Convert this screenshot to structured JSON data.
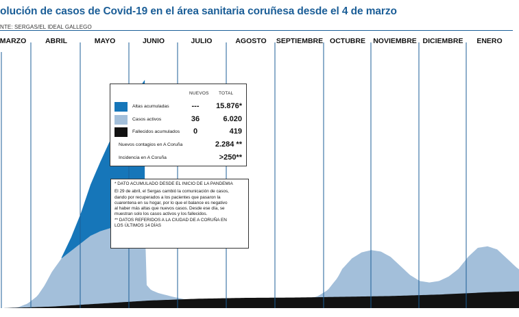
{
  "title": "olución de casos de Covid-19 en el área sanitaria coruñesa desde el 4 de marzo",
  "source": "NTE: SERGAS/EL IDEAL GALLEGO",
  "colors": {
    "altas": "#1676b9",
    "activos": "#a3bfda",
    "fallecidos": "#121212",
    "title": "#1b5e97",
    "gridline": "#1b5e97"
  },
  "legend": {
    "col_nuevos": "NUEVOS",
    "col_total": "TOTAL",
    "rows": [
      {
        "label": "Altas acumuladas",
        "swatch": "#1676b9",
        "nuevos": "---",
        "total": "15.876*"
      },
      {
        "label": "Casos activos",
        "swatch": "#a3bfda",
        "nuevos": "36",
        "total": "6.020"
      },
      {
        "label": "Fallecidos acumulados",
        "swatch": "#121212",
        "nuevos": "0",
        "total": "419"
      },
      {
        "label": "Nuevos contagios en A Coruña",
        "swatch": "",
        "nuevos": "",
        "total": "2.284 **"
      },
      {
        "label": "Incidencia en A Coruña",
        "swatch": "",
        "nuevos": "",
        "total": ">250**"
      }
    ]
  },
  "notes": [
    "* DATO ACUMULADO DESDE EL INICIO DE LA PANDEMIA",
    "",
    "El 29 de abril, el Sergas cambió la comunicación de casos,",
    "dando por recuperados a los pacientes que pasaron la",
    "cuarentena en su hogar, por lo que el balance es negativo",
    "al haber más altas que nuevos casos. Desde ese día, se",
    "muestran solo los casos activos y los fallecidos.",
    "** DATOS REFERIDOS A LA CIUDAD DE A CORUÑA EN",
    "LOS ÚLTIMOS 14 DÍAS"
  ],
  "chart_data": {
    "type": "area",
    "x_unit": "month",
    "categories": [
      "MARZO",
      "ABRIL",
      "MAYO",
      "JUNIO",
      "JULIO",
      "AGOSTO",
      "SEPTIEMBRE",
      "OCTUBRE",
      "NOVIEMBRE",
      "DICIEMBRE",
      "ENERO"
    ],
    "series": [
      {
        "name": "Altas acumuladas",
        "color": "#1676b9",
        "points": [
          [
            1.2,
            0.05
          ],
          [
            1.4,
            0.9
          ],
          [
            1.6,
            2.0
          ],
          [
            1.8,
            3.4
          ],
          [
            2.0,
            4.6
          ],
          [
            2.2,
            5.8
          ],
          [
            2.4,
            6.9
          ],
          [
            2.6,
            7.9
          ],
          [
            2.8,
            8.8
          ],
          [
            2.93,
            9.3
          ]
        ]
      },
      {
        "name": "Casos activos",
        "color": "#a3bfda",
        "points": [
          [
            0,
            0
          ],
          [
            0.3,
            0.05
          ],
          [
            0.5,
            0.3
          ],
          [
            0.7,
            0.8
          ],
          [
            0.85,
            1.5
          ],
          [
            1.0,
            2.4
          ],
          [
            1.2,
            3.3
          ],
          [
            1.4,
            3.8
          ],
          [
            1.6,
            4.3
          ],
          [
            1.8,
            4.8
          ],
          [
            2.0,
            5.1
          ],
          [
            2.2,
            5.3
          ],
          [
            2.4,
            5.5
          ],
          [
            2.6,
            5.7
          ],
          [
            2.8,
            5.8
          ],
          [
            2.93,
            5.9
          ],
          [
            2.94,
            1.6
          ],
          [
            3.05,
            1.2
          ],
          [
            3.2,
            1.0
          ],
          [
            3.5,
            0.75
          ],
          [
            3.8,
            0.55
          ],
          [
            4.2,
            0.5
          ],
          [
            4.6,
            0.48
          ],
          [
            5.0,
            0.45
          ],
          [
            5.5,
            0.42
          ],
          [
            6.0,
            0.5
          ],
          [
            6.3,
            0.6
          ],
          [
            6.5,
            0.8
          ],
          [
            6.7,
            1.2
          ],
          [
            6.9,
            2.0
          ],
          [
            7.0,
            2.6
          ],
          [
            7.2,
            3.3
          ],
          [
            7.4,
            3.7
          ],
          [
            7.6,
            3.85
          ],
          [
            7.8,
            3.75
          ],
          [
            8.0,
            3.4
          ],
          [
            8.2,
            2.8
          ],
          [
            8.4,
            2.2
          ],
          [
            8.6,
            1.8
          ],
          [
            8.8,
            1.7
          ],
          [
            9.0,
            1.8
          ],
          [
            9.2,
            2.1
          ],
          [
            9.4,
            2.6
          ],
          [
            9.6,
            3.4
          ],
          [
            9.8,
            4.0
          ],
          [
            10.0,
            4.1
          ],
          [
            10.2,
            3.9
          ],
          [
            10.4,
            3.3
          ],
          [
            10.6,
            2.7
          ],
          [
            10.8,
            2.2
          ],
          [
            11.0,
            1.95
          ],
          [
            11.2,
            1.8
          ],
          [
            11.4,
            1.8
          ],
          [
            11.55,
            1.95
          ],
          [
            11.6,
            2.4
          ],
          [
            11.75,
            2.5
          ],
          [
            11.8,
            2.9
          ],
          [
            11.95,
            3.1
          ],
          [
            12.1,
            3.7
          ],
          [
            12.3,
            4.3
          ],
          [
            12.5,
            5.3
          ],
          [
            12.7,
            6.6
          ],
          [
            12.9,
            8.6
          ],
          [
            13.1,
            11.0
          ],
          [
            13.25,
            12.6
          ],
          [
            13.35,
            13.2
          ]
        ]
      },
      {
        "name": "Fallecidos acumulados",
        "color": "#121212",
        "points": [
          [
            0,
            0
          ],
          [
            1.0,
            0.1
          ],
          [
            2.0,
            0.3
          ],
          [
            3.0,
            0.5
          ],
          [
            4.0,
            0.62
          ],
          [
            5.0,
            0.68
          ],
          [
            6.0,
            0.7
          ],
          [
            7.0,
            0.75
          ],
          [
            8.0,
            0.8
          ],
          [
            9.0,
            0.9
          ],
          [
            10.0,
            1.05
          ],
          [
            11.0,
            1.15
          ],
          [
            12.0,
            1.2
          ],
          [
            12.5,
            1.25
          ],
          [
            13.0,
            1.45
          ],
          [
            13.35,
            1.6
          ]
        ]
      }
    ],
    "grid": "vertical month separators",
    "legend_position": "center-left inset"
  }
}
